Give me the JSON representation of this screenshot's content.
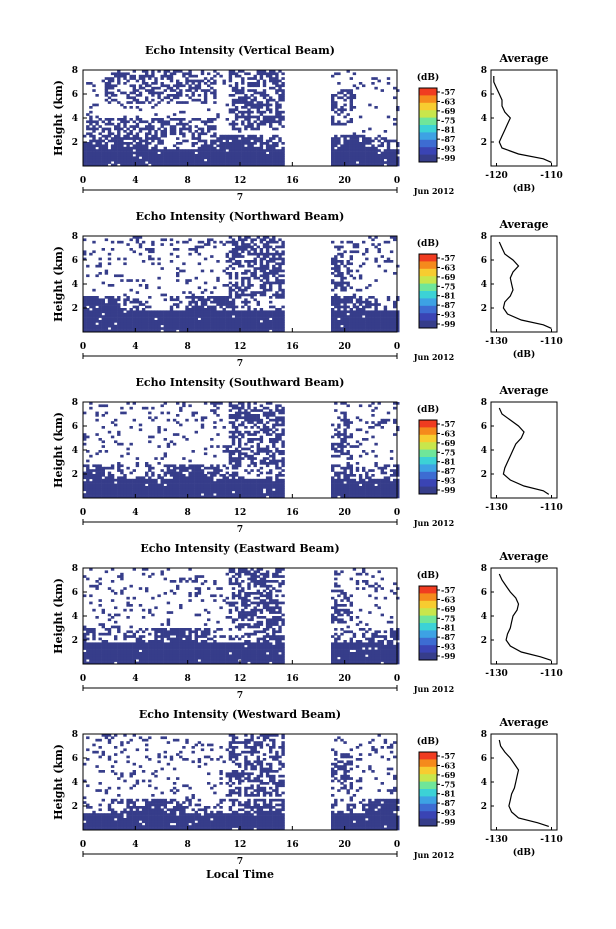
{
  "figure": {
    "x_axis_label": "Local Time",
    "month_label": "Jun 2012",
    "day_label": "7",
    "colorbar_unit": "(dB)",
    "colorbar_ticks": [
      "-57",
      "-63",
      "-69",
      "-75",
      "-81",
      "-87",
      "-93",
      "-99"
    ],
    "colorbar_colors": [
      "#f03c20",
      "#f58a1c",
      "#f7cc30",
      "#c8e64c",
      "#6fe69a",
      "#3cd2d6",
      "#3da2e4",
      "#3d6cd2",
      "#3a44b4",
      "#363d8a"
    ],
    "field_color": "#363d8a"
  },
  "chart_data": [
    {
      "type": "heatmap",
      "title": "Echo Intensity (Vertical Beam)",
      "ylabel": "Height (km)",
      "x_ticks": [
        "0",
        "4",
        "8",
        "12",
        "16",
        "20",
        "0"
      ],
      "y_ticks": [
        "8",
        "6",
        "4",
        "2"
      ],
      "xlim": [
        0,
        24
      ],
      "ylim": [
        0,
        8
      ],
      "colorbar_range": [
        -99,
        -57
      ],
      "data_gap": [
        15.5,
        18.8
      ],
      "average_profile": {
        "title": "Average",
        "xlabel": "(dB)",
        "x_ticks": [
          "-120",
          "-110"
        ],
        "xlim": [
          -121,
          -109
        ],
        "height_km": [
          0.3,
          0.6,
          1.0,
          1.5,
          2.0,
          2.5,
          3.0,
          3.5,
          4.0,
          4.5,
          5.0,
          5.5,
          6.0,
          6.5,
          7.0,
          7.5
        ],
        "db": [
          -110,
          -111.5,
          -116,
          -119,
          -119.5,
          -119,
          -118.5,
          -118,
          -117.5,
          -118.5,
          -119,
          -119,
          -119.5,
          -120,
          -120.5,
          -120.5
        ]
      }
    },
    {
      "type": "heatmap",
      "title": "Echo Intensity (Northward Beam)",
      "ylabel": "Height (km)",
      "x_ticks": [
        "0",
        "4",
        "8",
        "12",
        "16",
        "20",
        "0"
      ],
      "y_ticks": [
        "8",
        "6",
        "4",
        "2"
      ],
      "xlim": [
        0,
        24
      ],
      "ylim": [
        0,
        8
      ],
      "colorbar_range": [
        -99,
        -57
      ],
      "data_gap": [
        15.5,
        18.8
      ],
      "average_profile": {
        "title": "Average",
        "xlabel": "(dB)",
        "x_ticks": [
          "-130",
          "-110"
        ],
        "xlim": [
          -132,
          -108
        ],
        "height_km": [
          0.3,
          0.6,
          1.0,
          1.5,
          2.0,
          2.5,
          3.0,
          3.5,
          4.0,
          4.5,
          5.0,
          5.5,
          6.0,
          6.5,
          7.0,
          7.5
        ],
        "db": [
          -110,
          -113,
          -121,
          -126,
          -127.5,
          -127,
          -125,
          -124,
          -124.5,
          -125,
          -124,
          -122,
          -124,
          -127,
          -128,
          -129
        ]
      }
    },
    {
      "type": "heatmap",
      "title": "Echo Intensity (Southward Beam)",
      "ylabel": "Height (km)",
      "x_ticks": [
        "0",
        "4",
        "8",
        "12",
        "16",
        "20",
        "0"
      ],
      "y_ticks": [
        "8",
        "6",
        "4",
        "2"
      ],
      "xlim": [
        0,
        24
      ],
      "ylim": [
        0,
        8
      ],
      "colorbar_range": [
        -99,
        -57
      ],
      "data_gap": [
        15.5,
        18.8
      ],
      "average_profile": {
        "title": "Average",
        "xlabel": "",
        "x_ticks": [
          "-130",
          "-110"
        ],
        "xlim": [
          -132,
          -108
        ],
        "height_km": [
          0.3,
          0.6,
          1.0,
          1.5,
          2.0,
          2.5,
          3.0,
          3.5,
          4.0,
          4.5,
          5.0,
          5.5,
          6.0,
          6.5,
          7.0,
          7.5
        ],
        "db": [
          -111,
          -113,
          -120,
          -125,
          -127.5,
          -127,
          -126,
          -125,
          -124,
          -123,
          -121,
          -120,
          -122,
          -125,
          -128,
          -129
        ]
      }
    },
    {
      "type": "heatmap",
      "title": "Echo Intensity (Eastward Beam)",
      "ylabel": "Height (km)",
      "x_ticks": [
        "0",
        "4",
        "8",
        "12",
        "16",
        "20",
        "0"
      ],
      "y_ticks": [
        "8",
        "6",
        "4",
        "2"
      ],
      "xlim": [
        0,
        24
      ],
      "ylim": [
        0,
        8
      ],
      "colorbar_range": [
        -99,
        -57
      ],
      "data_gap": [
        15.5,
        18.8
      ],
      "average_profile": {
        "title": "Average",
        "xlabel": "",
        "x_ticks": [
          "-130",
          "-110"
        ],
        "xlim": [
          -132,
          -108
        ],
        "height_km": [
          0.3,
          0.6,
          1.0,
          1.5,
          2.0,
          2.5,
          3.0,
          3.5,
          4.0,
          4.5,
          5.0,
          5.5,
          6.0,
          6.5,
          7.0,
          7.5
        ],
        "db": [
          -110,
          -114,
          -121,
          -125,
          -126.5,
          -126,
          -125,
          -124.5,
          -124,
          -122.5,
          -122,
          -123,
          -125,
          -126.5,
          -128,
          -129
        ]
      }
    },
    {
      "type": "heatmap",
      "title": "Echo Intensity (Westward Beam)",
      "ylabel": "Height (km)",
      "x_ticks": [
        "0",
        "4",
        "8",
        "12",
        "16",
        "20",
        "0"
      ],
      "y_ticks": [
        "8",
        "6",
        "4",
        "2"
      ],
      "xlim": [
        0,
        24
      ],
      "ylim": [
        0,
        8
      ],
      "colorbar_range": [
        -99,
        -57
      ],
      "data_gap": [
        15.5,
        18.8
      ],
      "average_profile": {
        "title": "Average",
        "xlabel": "(dB)",
        "x_ticks": [
          "-130",
          "-110"
        ],
        "xlim": [
          -132,
          -108
        ],
        "height_km": [
          0.3,
          0.6,
          1.0,
          1.5,
          2.0,
          2.5,
          3.0,
          3.5,
          4.0,
          4.5,
          5.0,
          5.5,
          6.0,
          6.5,
          7.0,
          7.5
        ],
        "db": [
          -111,
          -115,
          -122,
          -124.5,
          -125.5,
          -125,
          -124.5,
          -123.5,
          -123,
          -122.5,
          -122,
          -123.5,
          -125,
          -127,
          -128.5,
          -129
        ]
      }
    }
  ]
}
